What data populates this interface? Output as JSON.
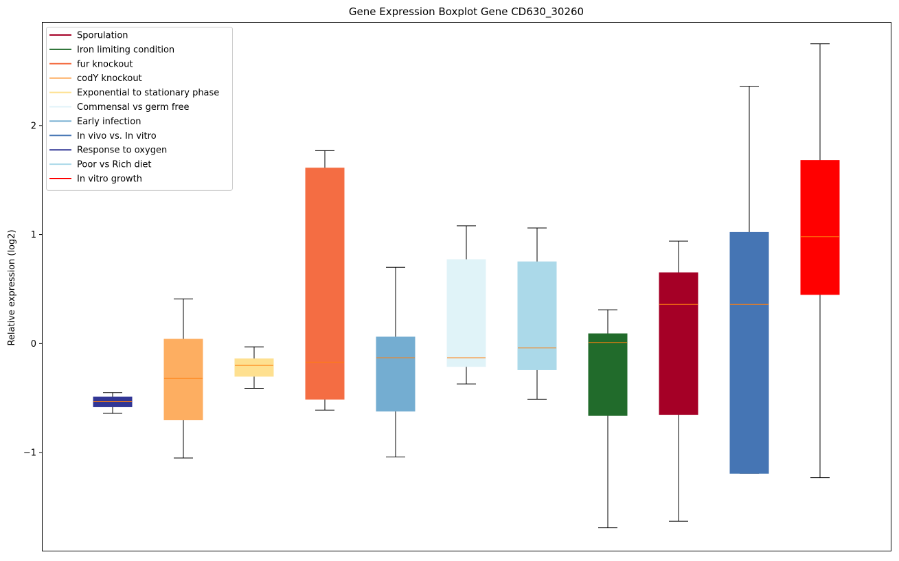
{
  "chart_data": {
    "type": "boxplot",
    "title": "Gene Expression Boxplot Gene CD630_30260",
    "xlabel": "",
    "ylabel": "Relative expression (log2)",
    "ylim": [
      -1.9,
      2.95
    ],
    "yticks": [
      -1,
      0,
      1,
      2
    ],
    "ytick_labels": [
      "−1",
      "0",
      "1",
      "2"
    ],
    "grid": false,
    "legend_position": "top-left",
    "median_color": "#ff7f0e",
    "whisker_color": "#000000",
    "legend": [
      {
        "label": "Sporulation",
        "color": "#a50026"
      },
      {
        "label": "Iron limiting condition",
        "color": "#216b2b"
      },
      {
        "label": "fur knockout",
        "color": "#f46d43"
      },
      {
        "label": "codY knockout",
        "color": "#fdae61"
      },
      {
        "label": "Exponential to stationary phase",
        "color": "#fee090"
      },
      {
        "label": "Commensal vs germ free",
        "color": "#e0f3f8"
      },
      {
        "label": "Early infection",
        "color": "#74add1"
      },
      {
        "label": "In vivo vs. In vitro",
        "color": "#4575b4"
      },
      {
        "label": "Response to oxygen",
        "color": "#313695"
      },
      {
        "label": "Poor vs Rich diet",
        "color": "#abd9e9"
      },
      {
        "label": "In vitro growth",
        "color": "#ff0000"
      }
    ],
    "boxes": [
      {
        "group": "Response to oxygen",
        "color": "#313695",
        "whisker_low": -0.64,
        "q1": -0.58,
        "median": -0.53,
        "q3": -0.49,
        "whisker_high": -0.45
      },
      {
        "group": "codY knockout",
        "color": "#fdae61",
        "whisker_low": -1.05,
        "q1": -0.7,
        "median": -0.32,
        "q3": 0.04,
        "whisker_high": 0.41
      },
      {
        "group": "Exponential to stationary phase",
        "color": "#fee090",
        "whisker_low": -0.41,
        "q1": -0.3,
        "median": -0.2,
        "q3": -0.14,
        "whisker_high": -0.03
      },
      {
        "group": "fur knockout",
        "color": "#f46d43",
        "whisker_low": -0.61,
        "q1": -0.51,
        "median": -0.17,
        "q3": 1.61,
        "whisker_high": 1.77
      },
      {
        "group": "Early infection",
        "color": "#74add1",
        "whisker_low": -1.04,
        "q1": -0.62,
        "median": -0.13,
        "q3": 0.06,
        "whisker_high": 0.7
      },
      {
        "group": "Commensal vs germ free",
        "color": "#e0f3f8",
        "whisker_low": -0.37,
        "q1": -0.21,
        "median": -0.13,
        "q3": 0.77,
        "whisker_high": 1.08
      },
      {
        "group": "Poor vs Rich diet",
        "color": "#abd9e9",
        "whisker_low": -0.51,
        "q1": -0.24,
        "median": -0.04,
        "q3": 0.75,
        "whisker_high": 1.06
      },
      {
        "group": "Iron limiting condition",
        "color": "#216b2b",
        "whisker_low": -1.69,
        "q1": -0.66,
        "median": 0.01,
        "q3": 0.09,
        "whisker_high": 0.31
      },
      {
        "group": "Sporulation",
        "color": "#a50026",
        "whisker_low": -1.63,
        "q1": -0.65,
        "median": 0.36,
        "q3": 0.65,
        "whisker_high": 0.94
      },
      {
        "group": "In vivo vs. In vitro",
        "color": "#4575b4",
        "whisker_low": -1.19,
        "q1": -1.19,
        "median": 0.36,
        "q3": 1.02,
        "whisker_high": 2.36
      },
      {
        "group": "In vitro growth",
        "color": "#ff0000",
        "whisker_low": -1.23,
        "q1": 0.45,
        "median": 0.98,
        "q3": 1.68,
        "whisker_high": 2.75
      }
    ]
  }
}
